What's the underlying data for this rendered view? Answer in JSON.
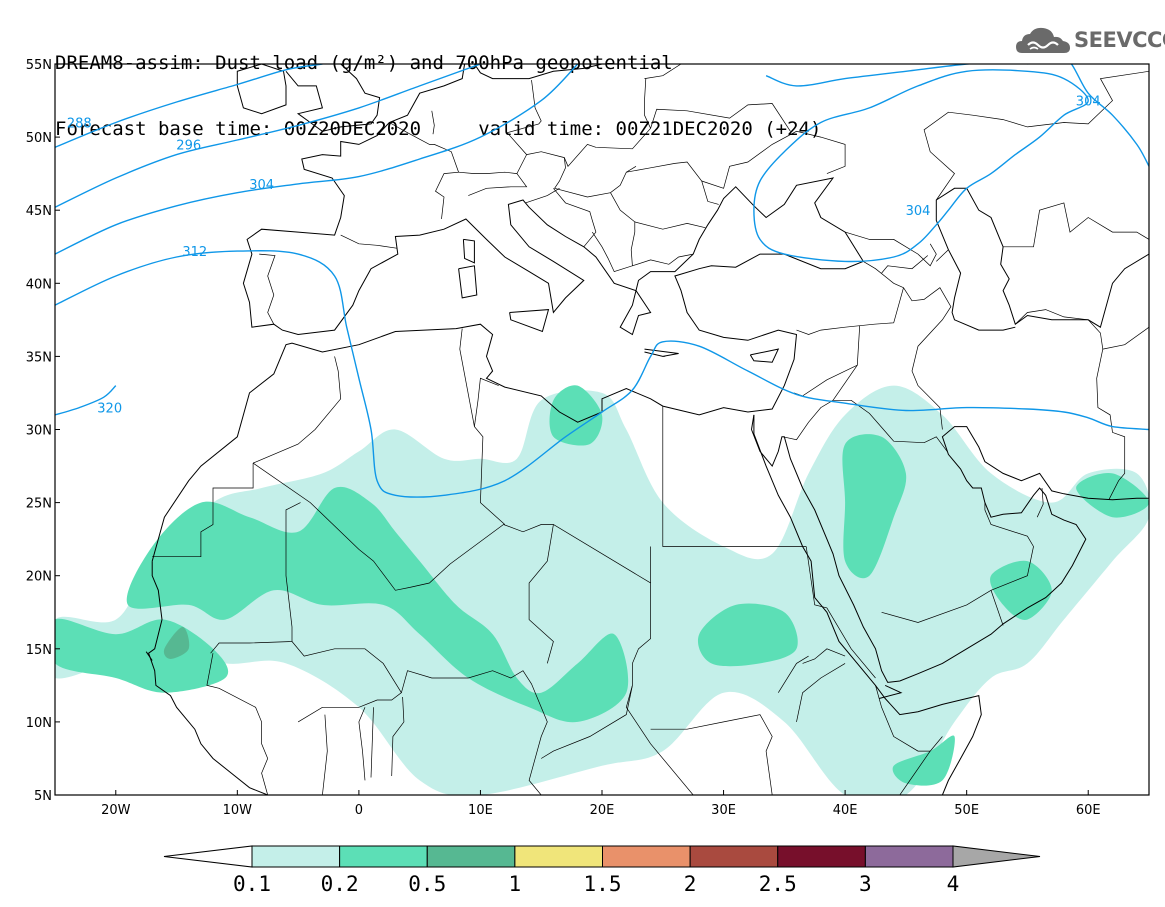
{
  "header": {
    "line1": "DREAM8-assim: Dust load (g/m²) and 700hPa geopotential",
    "line2": "Forecast base time: 00Z20DEC2020     valid time: 00Z21DEC2020 (+24)"
  },
  "logo": {
    "text": "SEEVCCC",
    "icon": "cloud-icon"
  },
  "map": {
    "lon_range": [
      -25,
      65
    ],
    "lat_range": [
      5,
      55
    ],
    "lat_ticks": [
      {
        "value": 55,
        "label": "55N"
      },
      {
        "value": 50,
        "label": "50N"
      },
      {
        "value": 45,
        "label": "45N"
      },
      {
        "value": 40,
        "label": "40N"
      },
      {
        "value": 35,
        "label": "35N"
      },
      {
        "value": 30,
        "label": "30N"
      },
      {
        "value": 25,
        "label": "25N"
      },
      {
        "value": 20,
        "label": "20N"
      },
      {
        "value": 15,
        "label": "15N"
      },
      {
        "value": 10,
        "label": "10N"
      },
      {
        "value": 5,
        "label": "5N"
      }
    ],
    "lon_ticks": [
      {
        "value": -20,
        "label": "20W"
      },
      {
        "value": -10,
        "label": "10W"
      },
      {
        "value": 0,
        "label": "0"
      },
      {
        "value": 10,
        "label": "10E"
      },
      {
        "value": 20,
        "label": "20E"
      },
      {
        "value": 30,
        "label": "30E"
      },
      {
        "value": 40,
        "label": "40E"
      },
      {
        "value": 50,
        "label": "50E"
      },
      {
        "value": 60,
        "label": "60E"
      }
    ],
    "contour_color": "#0f97e8",
    "contours": [
      {
        "label": "288",
        "label_at": [
          -23,
          51
        ],
        "points": [
          [
            -25,
            49.3
          ],
          [
            -20,
            51
          ],
          [
            -15,
            52.4
          ],
          [
            -10,
            53.6
          ],
          [
            -6,
            54.6
          ],
          [
            -3,
            55
          ]
        ]
      },
      {
        "label": "296",
        "label_at": [
          -14,
          49.5
        ],
        "points": [
          [
            -25,
            45.2
          ],
          [
            -20,
            47.2
          ],
          [
            -15,
            48.8
          ],
          [
            -10,
            49.8
          ],
          [
            -5,
            50.8
          ],
          [
            0,
            52
          ],
          [
            5,
            53.5
          ],
          [
            10,
            55
          ]
        ]
      },
      {
        "label": "304",
        "label_at": [
          -8,
          46.8
        ],
        "points": [
          [
            -25,
            42
          ],
          [
            -20,
            44
          ],
          [
            -15,
            45.3
          ],
          [
            -10,
            46.2
          ],
          [
            -5,
            46.8
          ],
          [
            0,
            47.3
          ],
          [
            5,
            48.5
          ],
          [
            10,
            50
          ],
          [
            15,
            52.5
          ],
          [
            18,
            55
          ]
        ]
      },
      {
        "label": "312",
        "label_at": [
          -13.5,
          42.2
        ],
        "points": [
          [
            -25,
            38.5
          ],
          [
            -20,
            40.5
          ],
          [
            -15,
            41.8
          ],
          [
            -10,
            42.2
          ],
          [
            -5,
            42
          ],
          [
            -2,
            40.5
          ],
          [
            -1,
            37
          ],
          [
            0,
            33.5
          ],
          [
            1,
            30
          ],
          [
            1.5,
            26.5
          ],
          [
            3,
            25.5
          ],
          [
            7,
            25.5
          ],
          [
            12,
            26.5
          ],
          [
            17,
            29.5
          ],
          [
            20,
            31.2
          ],
          [
            22.5,
            32.7
          ],
          [
            24,
            35
          ],
          [
            25,
            36
          ],
          [
            28,
            35.7
          ],
          [
            32,
            34
          ],
          [
            36,
            32.4
          ],
          [
            40,
            31.8
          ],
          [
            45,
            31.3
          ],
          [
            50,
            31.5
          ],
          [
            55,
            31.4
          ],
          [
            58,
            31.2
          ],
          [
            60,
            30.8
          ],
          [
            62,
            30.2
          ],
          [
            65,
            30
          ]
        ]
      },
      {
        "label": "304",
        "label_at": [
          46,
          45
        ],
        "points": [
          [
            33.5,
            54.2
          ],
          [
            36,
            53.5
          ],
          [
            40,
            54
          ],
          [
            45,
            54.5
          ],
          [
            50,
            55
          ],
          [
            54,
            55.2
          ],
          [
            56,
            55.3
          ]
        ]
      },
      {
        "label": "304",
        "label_at": [
          60,
          52.5
        ],
        "points": [
          [
            55,
            55
          ],
          [
            58,
            55.5
          ],
          [
            60,
            53
          ],
          [
            62,
            51.5
          ],
          [
            64,
            49.5
          ],
          [
            65,
            48
          ]
        ]
      },
      {
        "label": "320",
        "label_at": [
          -20.5,
          31.5
        ],
        "points": [
          [
            -25,
            31
          ],
          [
            -23,
            31.5
          ],
          [
            -21,
            32.2
          ],
          [
            -20,
            33
          ]
        ]
      }
    ],
    "ring_304": [
      [
        42,
        52
      ],
      [
        38,
        51
      ],
      [
        35,
        49
      ],
      [
        33,
        47
      ],
      [
        32.5,
        45
      ],
      [
        33,
        43
      ],
      [
        35,
        42
      ],
      [
        40,
        41.5
      ],
      [
        44,
        41.8
      ],
      [
        46,
        42.7
      ],
      [
        47.5,
        44
      ],
      [
        48.5,
        45
      ],
      [
        50,
        46.5
      ],
      [
        52,
        47.5
      ],
      [
        54,
        48.8
      ],
      [
        56,
        50
      ],
      [
        58,
        51.5
      ],
      [
        60,
        52.5
      ],
      [
        58,
        54
      ],
      [
        55,
        54.5
      ],
      [
        50,
        54.5
      ],
      [
        46,
        53.5
      ]
    ]
  },
  "chart_data": {
    "type": "heatmap",
    "title": "DREAM8-assim: Dust load (g/m²) and 700hPa geopotential",
    "variable": "Dust load (g/m²)",
    "overlay": "700hPa geopotential contours (288, 296, 304, 312, 320)",
    "colorbar": {
      "bounds": [
        "0.1",
        "0.2",
        "0.5",
        "1",
        "1.5",
        "2",
        "2.5",
        "3",
        "4"
      ],
      "colors": [
        "#c4efe9",
        "#5cdfb6",
        "#56b892",
        "#f0e57a",
        "#e9916a",
        "#a94a3f",
        "#770f2b",
        "#8d6a9b"
      ],
      "under_color": "#ffffff",
      "over_color": "#a7a7a7"
    },
    "dust_regions": [
      {
        "level": "0.1",
        "points": [
          [
            -25,
            17
          ],
          [
            -20,
            17
          ],
          [
            -17,
            21
          ],
          [
            -12,
            25
          ],
          [
            -8,
            26
          ],
          [
            -3,
            27
          ],
          [
            0,
            28.5
          ],
          [
            3,
            30
          ],
          [
            7,
            28
          ],
          [
            10,
            28
          ],
          [
            13,
            28
          ],
          [
            15,
            32
          ],
          [
            20,
            32.5
          ],
          [
            22,
            30
          ],
          [
            25,
            25
          ],
          [
            30,
            22
          ],
          [
            34,
            21.5
          ],
          [
            37,
            27
          ],
          [
            40,
            31
          ],
          [
            44,
            33
          ],
          [
            48,
            31
          ],
          [
            52,
            27
          ],
          [
            57,
            25
          ],
          [
            60,
            27
          ],
          [
            64,
            27
          ],
          [
            65,
            24
          ],
          [
            62,
            21
          ],
          [
            58,
            17
          ],
          [
            55,
            14
          ],
          [
            52,
            13
          ],
          [
            49,
            10
          ],
          [
            45,
            5
          ],
          [
            40,
            5
          ],
          [
            35,
            10
          ],
          [
            30,
            12
          ],
          [
            25,
            8
          ],
          [
            20,
            7
          ],
          [
            10,
            5
          ],
          [
            5,
            6
          ],
          [
            0,
            11
          ],
          [
            -6,
            14
          ],
          [
            -11,
            14
          ],
          [
            -17,
            15
          ],
          [
            -25,
            13
          ]
        ]
      },
      {
        "level": "0.2",
        "points": [
          [
            -19,
            18
          ],
          [
            -17,
            22
          ],
          [
            -13,
            25
          ],
          [
            -9,
            24
          ],
          [
            -5,
            23
          ],
          [
            -2,
            26
          ],
          [
            1,
            25
          ],
          [
            3,
            23
          ],
          [
            5,
            21
          ],
          [
            8,
            18
          ],
          [
            11,
            16
          ],
          [
            13,
            13
          ],
          [
            15,
            12
          ],
          [
            18,
            14
          ],
          [
            21,
            16
          ],
          [
            22,
            12
          ],
          [
            18,
            10
          ],
          [
            14,
            11
          ],
          [
            9,
            13
          ],
          [
            5,
            16
          ],
          [
            2,
            18
          ],
          [
            -3,
            18
          ],
          [
            -7,
            19
          ],
          [
            -11,
            17
          ],
          [
            -14,
            18
          ]
        ]
      },
      {
        "level": "0.2",
        "points": [
          [
            -25,
            17
          ],
          [
            -20,
            16
          ],
          [
            -16,
            17
          ],
          [
            -12,
            15
          ],
          [
            -11,
            13
          ],
          [
            -16,
            12
          ],
          [
            -20,
            13
          ],
          [
            -25,
            14
          ]
        ]
      },
      {
        "level": "0.2",
        "points": [
          [
            16,
            32
          ],
          [
            18,
            33
          ],
          [
            20,
            31
          ],
          [
            19,
            29
          ],
          [
            16,
            29.5
          ]
        ]
      },
      {
        "level": "0.2",
        "points": [
          [
            40,
            29
          ],
          [
            43,
            29.5
          ],
          [
            45,
            27
          ],
          [
            44,
            24
          ],
          [
            42,
            20
          ],
          [
            40,
            21
          ],
          [
            40,
            25
          ]
        ]
      },
      {
        "level": "0.2",
        "points": [
          [
            28,
            16
          ],
          [
            31,
            18
          ],
          [
            35,
            17.5
          ],
          [
            36,
            15
          ],
          [
            33,
            14
          ],
          [
            29,
            14
          ]
        ]
      },
      {
        "level": "0.2",
        "points": [
          [
            44,
            7
          ],
          [
            47,
            8
          ],
          [
            49,
            9
          ],
          [
            48,
            6
          ],
          [
            45,
            5.8
          ]
        ]
      },
      {
        "level": "0.2",
        "points": [
          [
            59,
            26
          ],
          [
            62,
            27
          ],
          [
            65,
            25
          ],
          [
            62,
            24
          ]
        ]
      },
      {
        "level": "0.2",
        "points": [
          [
            52,
            20
          ],
          [
            55,
            21
          ],
          [
            57,
            19
          ],
          [
            55,
            17
          ],
          [
            53,
            18
          ]
        ]
      },
      {
        "level": "0.5",
        "points": [
          [
            -16,
            15
          ],
          [
            -14.5,
            16.5
          ],
          [
            -14,
            15
          ],
          [
            -15.5,
            14.3
          ]
        ]
      }
    ]
  },
  "colorbar_labels": [
    "0.1",
    "0.2",
    "0.5",
    "1",
    "1.5",
    "2",
    "2.5",
    "3",
    "4"
  ]
}
